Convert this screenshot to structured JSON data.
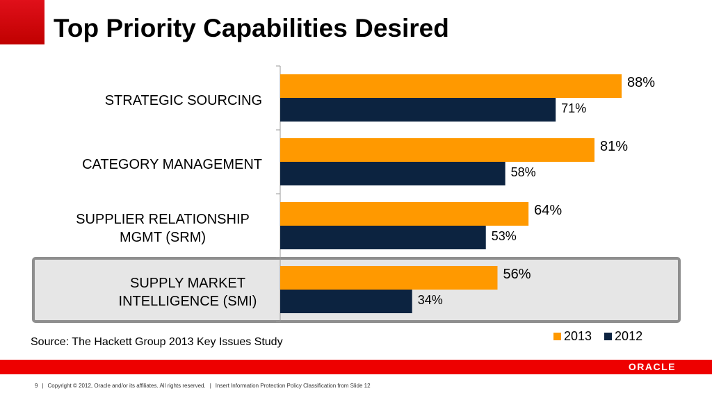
{
  "header": {
    "title": "Top Priority Capabilities Desired"
  },
  "chart_data": {
    "type": "bar",
    "orientation": "horizontal",
    "categories": [
      [
        "STRATEGIC SOURCING"
      ],
      [
        "CATEGORY MANAGEMENT"
      ],
      [
        "SUPPLIER RELATIONSHIP",
        "MGMT (SRM)"
      ],
      [
        "SUPPLY MARKET",
        "INTELLIGENCE (SMI)"
      ]
    ],
    "series": [
      {
        "name": "2013",
        "color": "#ff9900",
        "values": [
          88,
          81,
          64,
          56
        ],
        "labels": [
          "88%",
          "81%",
          "64%",
          "56%"
        ]
      },
      {
        "name": "2012",
        "color": "#0c2340",
        "values": [
          71,
          58,
          53,
          34
        ],
        "labels": [
          "71%",
          "58%",
          "53%",
          "34%"
        ]
      }
    ],
    "highlighted_category": 3,
    "xlim": [
      0,
      100
    ],
    "legend_position": "bottom-right"
  },
  "source": "Source: The Hackett Group 2013 Key Issues Study",
  "brand": {
    "logo_text": "ORACLE",
    "color": "#ee0000"
  },
  "footer": {
    "page_number": "9",
    "copyright": "Copyright © 2012, Oracle and/or its affiliates. All rights reserved.",
    "classification": "Insert Information Protection Policy Classification from Slide 12"
  }
}
